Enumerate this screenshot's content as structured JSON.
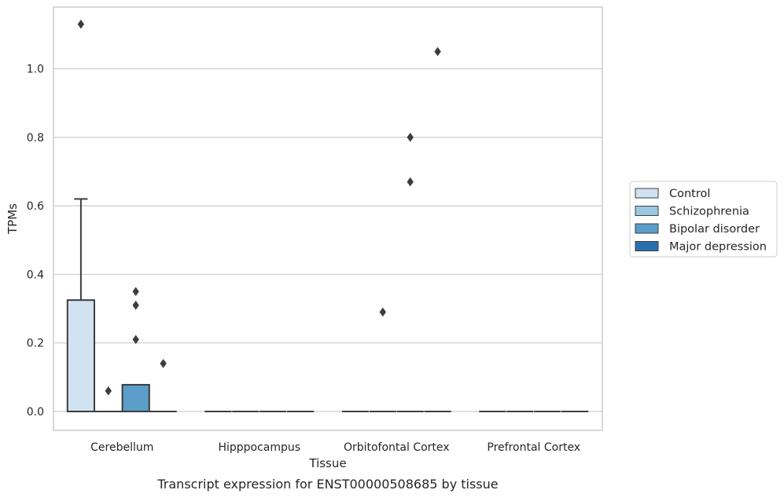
{
  "chart_data": {
    "type": "boxplot",
    "title": "",
    "caption": "Transcript expression for ENST00000508685 by tissue",
    "xlabel": "Tissue",
    "ylabel": "TPMs",
    "ylim": [
      -0.055,
      1.18
    ],
    "yticks": [
      0.0,
      0.2,
      0.4,
      0.6,
      0.8,
      1.0
    ],
    "ytick_labels": [
      "0.0",
      "0.2",
      "0.4",
      "0.6",
      "0.8",
      "1.0"
    ],
    "grid": "horizontal",
    "legend_position": "right",
    "categories": [
      "Cerebellum",
      "Hipppocampus",
      "Orbitofontal Cortex",
      "Prefrontal Cortex"
    ],
    "series": [
      {
        "name": "Control",
        "color": "#d1e2f2",
        "boxes": [
          {
            "q1": 0.0,
            "median": 0.0,
            "q3": 0.325,
            "whisker_low": 0.0,
            "whisker_high": 0.62,
            "outliers": [
              1.13
            ]
          },
          {
            "q1": 0.0,
            "median": 0.0,
            "q3": 0.0,
            "whisker_low": 0.0,
            "whisker_high": 0.0,
            "outliers": []
          },
          {
            "q1": 0.0,
            "median": 0.0,
            "q3": 0.0,
            "whisker_low": 0.0,
            "whisker_high": 0.0,
            "outliers": []
          },
          {
            "q1": 0.0,
            "median": 0.0,
            "q3": 0.0,
            "whisker_low": 0.0,
            "whisker_high": 0.0,
            "outliers": []
          }
        ]
      },
      {
        "name": "Schizophrenia",
        "color": "#9ac8e0",
        "boxes": [
          {
            "q1": 0.0,
            "median": 0.0,
            "q3": 0.0,
            "whisker_low": 0.0,
            "whisker_high": 0.0,
            "outliers": [
              0.06
            ]
          },
          {
            "q1": 0.0,
            "median": 0.0,
            "q3": 0.0,
            "whisker_low": 0.0,
            "whisker_high": 0.0,
            "outliers": []
          },
          {
            "q1": 0.0,
            "median": 0.0,
            "q3": 0.0,
            "whisker_low": 0.0,
            "whisker_high": 0.0,
            "outliers": [
              0.29
            ]
          },
          {
            "q1": 0.0,
            "median": 0.0,
            "q3": 0.0,
            "whisker_low": 0.0,
            "whisker_high": 0.0,
            "outliers": []
          }
        ]
      },
      {
        "name": "Bipolar disorder",
        "color": "#5a9ec9",
        "boxes": [
          {
            "q1": 0.0,
            "median": 0.0,
            "q3": 0.078,
            "whisker_low": 0.0,
            "whisker_high": 0.078,
            "outliers": [
              0.35,
              0.31,
              0.21
            ]
          },
          {
            "q1": 0.0,
            "median": 0.0,
            "q3": 0.0,
            "whisker_low": 0.0,
            "whisker_high": 0.0,
            "outliers": []
          },
          {
            "q1": 0.0,
            "median": 0.0,
            "q3": 0.0,
            "whisker_low": 0.0,
            "whisker_high": 0.0,
            "outliers": [
              0.8,
              0.67
            ]
          },
          {
            "q1": 0.0,
            "median": 0.0,
            "q3": 0.0,
            "whisker_low": 0.0,
            "whisker_high": 0.0,
            "outliers": []
          }
        ]
      },
      {
        "name": "Major depression",
        "color": "#2a6fad",
        "boxes": [
          {
            "q1": 0.0,
            "median": 0.0,
            "q3": 0.0,
            "whisker_low": 0.0,
            "whisker_high": 0.0,
            "outliers": [
              0.14
            ]
          },
          {
            "q1": 0.0,
            "median": 0.0,
            "q3": 0.0,
            "whisker_low": 0.0,
            "whisker_high": 0.0,
            "outliers": []
          },
          {
            "q1": 0.0,
            "median": 0.0,
            "q3": 0.0,
            "whisker_low": 0.0,
            "whisker_high": 0.0,
            "outliers": [
              1.05
            ]
          },
          {
            "q1": 0.0,
            "median": 0.0,
            "q3": 0.0,
            "whisker_low": 0.0,
            "whisker_high": 0.0,
            "outliers": []
          }
        ]
      }
    ]
  }
}
